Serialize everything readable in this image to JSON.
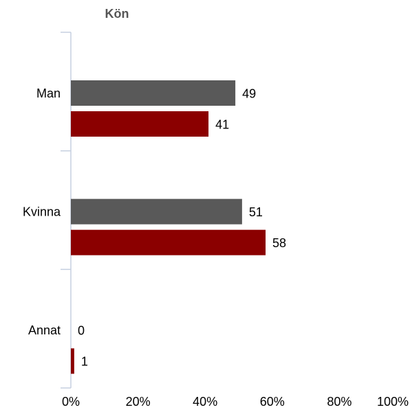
{
  "chart_data": {
    "type": "hbar",
    "title": "Kön",
    "categories": [
      "Man",
      "Kvinna",
      "Annat"
    ],
    "series": [
      {
        "color": "#595959",
        "values": [
          49,
          51,
          0
        ]
      },
      {
        "color": "#8b0000",
        "values": [
          41,
          58,
          1
        ]
      }
    ],
    "xlim": [
      0,
      100
    ],
    "xticks": [
      {
        "value": 0,
        "label": "0%"
      },
      {
        "value": 20,
        "label": "20%"
      },
      {
        "value": 40,
        "label": "40%"
      },
      {
        "value": 60,
        "label": "60%"
      },
      {
        "value": 80,
        "label": "80%"
      },
      {
        "value": 100,
        "label": "100%"
      }
    ],
    "grid": false
  }
}
